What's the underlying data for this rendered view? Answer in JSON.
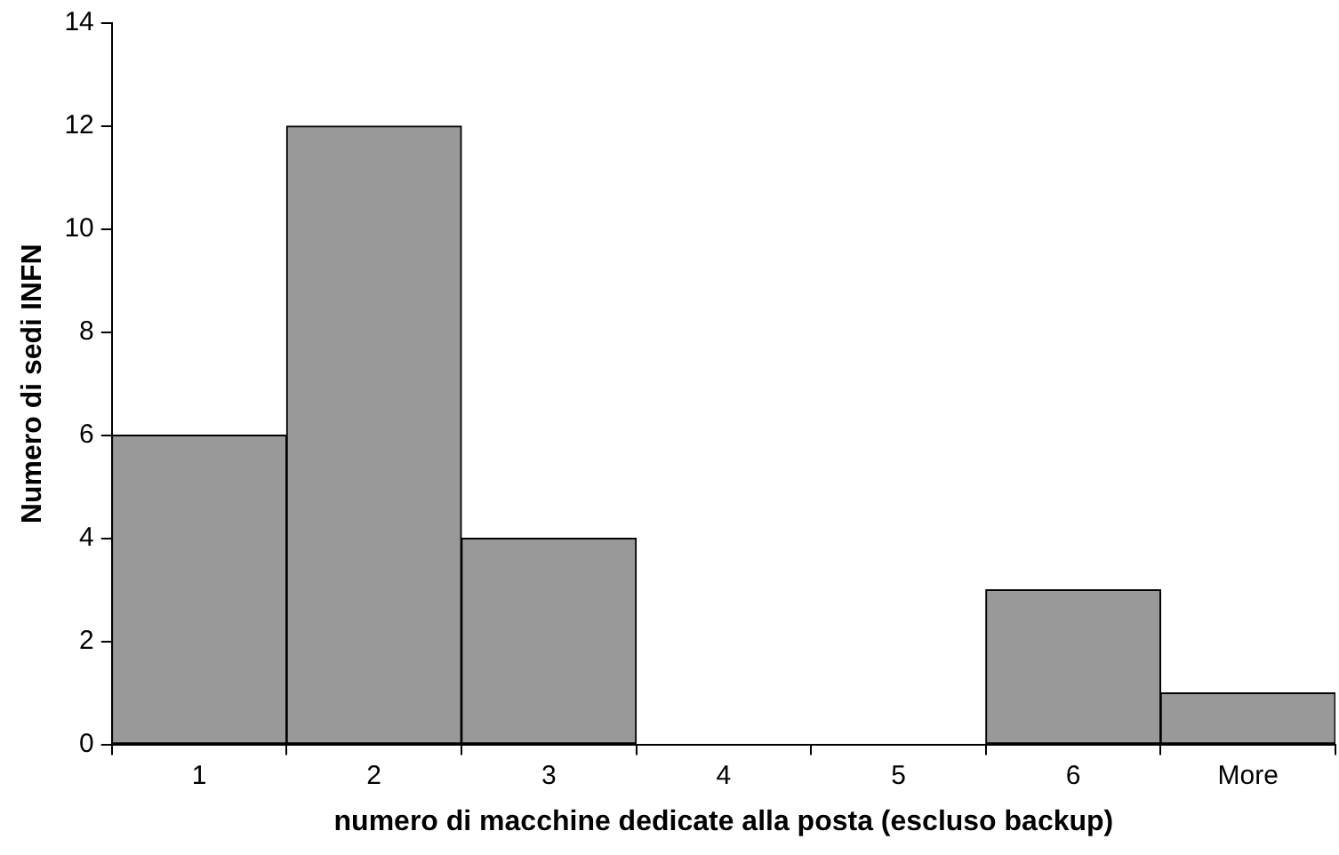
{
  "chart_data": {
    "type": "bar",
    "categories": [
      "1",
      "2",
      "3",
      "4",
      "5",
      "6",
      "More"
    ],
    "values": [
      6,
      12,
      4,
      0,
      0,
      3,
      1
    ],
    "color": "#999999",
    "xlabel": "numero di macchine dedicate alla posta (escluso backup)",
    "ylabel": "Numero di sedi INFN",
    "ylim": [
      0,
      14
    ],
    "yticks": [
      0,
      2,
      4,
      6,
      8,
      10,
      12,
      14
    ]
  }
}
